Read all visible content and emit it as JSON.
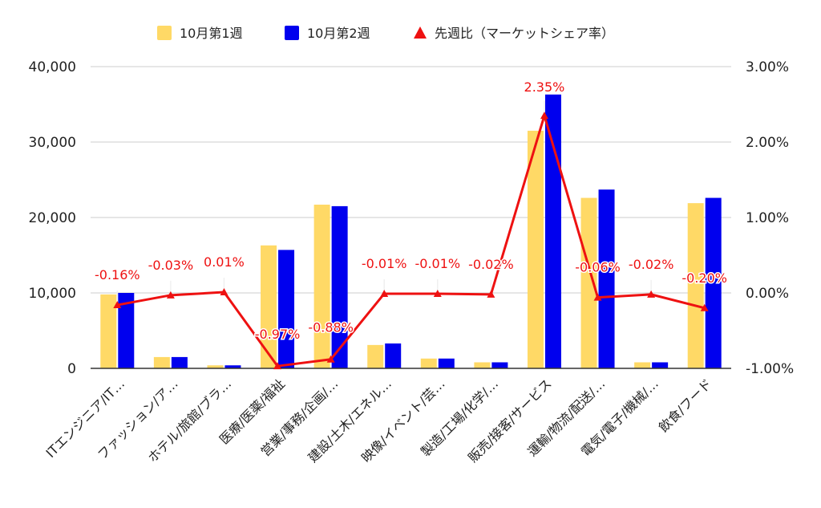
{
  "chart_data": {
    "type": "bar",
    "categories": [
      "ITエンジニア/IT…",
      "ファッション/ア…",
      "ホテル/旅館/ブラ…",
      "医療/医薬/福祉",
      "営業/事務/企画/…",
      "建設/土木/エネル…",
      "映像/イベント/芸…",
      "製造/工場/化学/…",
      "販売/接客/サービス",
      "運輸/物流/配送/…",
      "電気/電子/機械/…",
      "飲食/フード"
    ],
    "series": [
      {
        "name": "10月第1週",
        "type": "bar",
        "axis": "left",
        "color": "#FFD966",
        "values": [
          9800,
          1500,
          400,
          16300,
          21700,
          3100,
          1300,
          800,
          31500,
          22600,
          800,
          21900
        ]
      },
      {
        "name": "10月第2週",
        "type": "bar",
        "axis": "left",
        "color": "#0000EE",
        "values": [
          10000,
          1500,
          400,
          15700,
          21500,
          3300,
          1300,
          800,
          36300,
          23700,
          800,
          22600
        ]
      },
      {
        "name": "先週比（マーケットシェア率）",
        "type": "line",
        "axis": "right",
        "color": "#EE1111",
        "values": [
          -0.16,
          -0.03,
          0.01,
          -0.97,
          -0.88,
          -0.01,
          -0.01,
          -0.02,
          2.35,
          -0.06,
          -0.02,
          -0.2
        ],
        "labels": [
          "-0.16%",
          "-0.03%",
          "0.01%",
          "-0.97%",
          "-0.88%",
          "-0.01%",
          "-0.01%",
          "-0.02%",
          "2.35%",
          "-0.06%",
          "-0.02%",
          "-0.20%"
        ]
      }
    ],
    "ylim_left": [
      0,
      40000
    ],
    "yticks_left": [
      "0",
      "10,000",
      "20,000",
      "30,000",
      "40,000"
    ],
    "ylim_right": [
      -1.0,
      3.0
    ],
    "yticks_right": [
      "-1.00%",
      "0.00%",
      "1.00%",
      "2.00%",
      "3.00%"
    ],
    "legend_position": "top",
    "grid": true
  }
}
